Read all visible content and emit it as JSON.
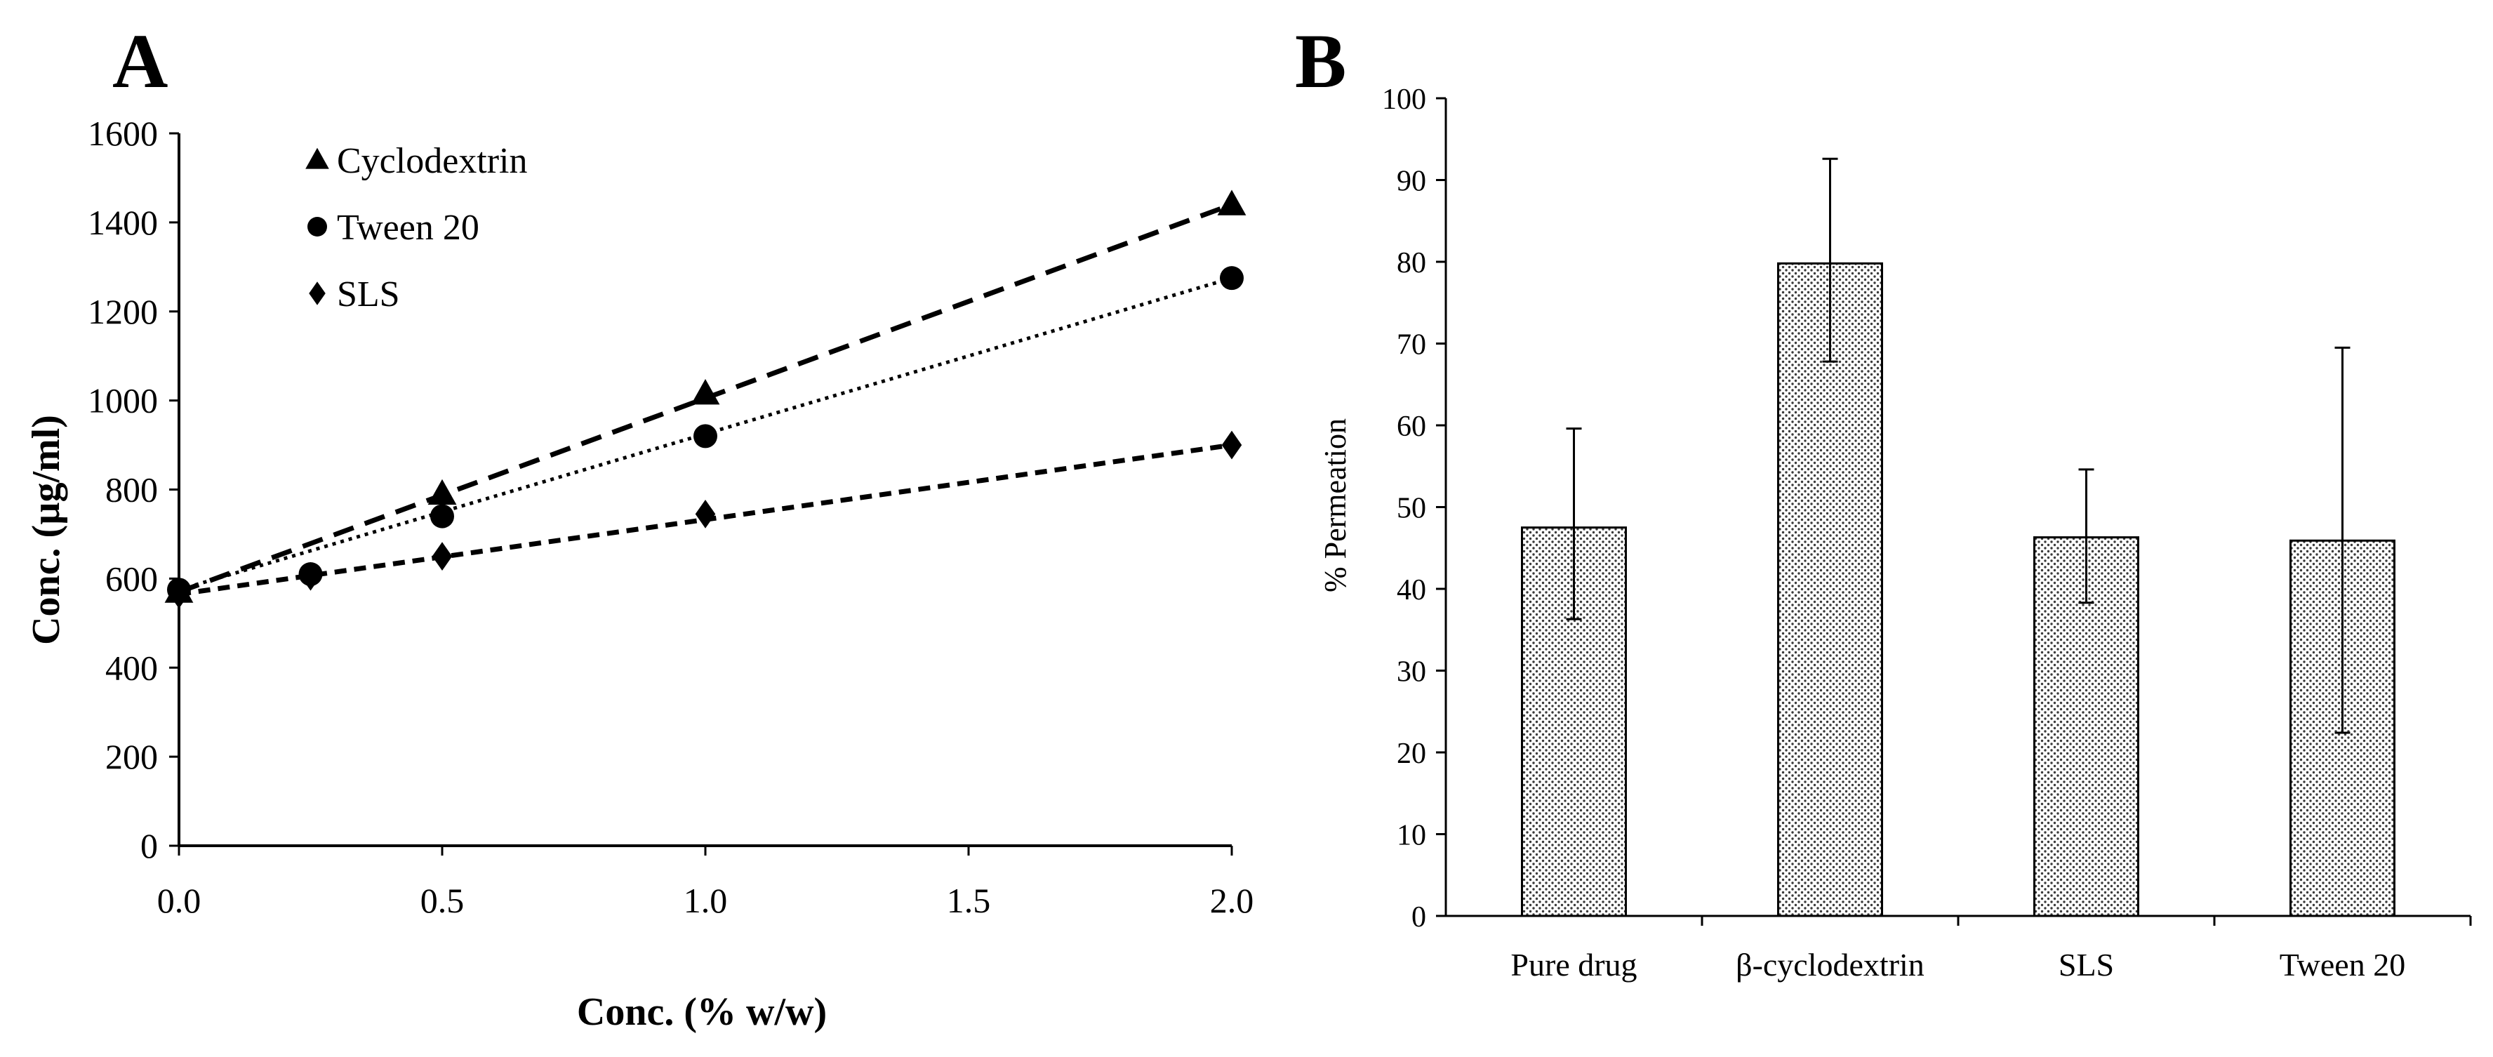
{
  "chart_data": [
    {
      "panel_label": "A",
      "type": "line",
      "xlabel": "Conc. (% w/w)",
      "ylabel": "Conc.  (µg/ml)",
      "xlim": [
        0,
        2
      ],
      "ylim": [
        0,
        1600
      ],
      "x_ticks": [
        "0.0",
        "0.5",
        "1.0",
        "1.5",
        "2.0"
      ],
      "y_ticks": [
        "0",
        "200",
        "400",
        "600",
        "800",
        "1000",
        "1200",
        "1400",
        "1600"
      ],
      "legend_position": "top-left",
      "grid": false,
      "series": [
        {
          "name": "Cyclodextrin",
          "marker": "triangle",
          "line_style": "long-dash",
          "points": [
            [
              0,
              570
            ],
            [
              0.5,
              790
            ],
            [
              1.0,
              1015
            ],
            [
              2.0,
              1440
            ]
          ]
        },
        {
          "name": "Tween 20",
          "marker": "circle",
          "line_style": "dotted",
          "points": [
            [
              0,
              575
            ],
            [
              0.25,
              610
            ],
            [
              0.5,
              740
            ],
            [
              1.0,
              920
            ],
            [
              2.0,
              1275
            ]
          ]
        },
        {
          "name": "SLS",
          "marker": "diamond",
          "line_style": "short-dash",
          "points": [
            [
              0,
              565
            ],
            [
              0.25,
              605
            ],
            [
              0.5,
              650
            ],
            [
              1.0,
              745
            ],
            [
              2.0,
              900
            ]
          ]
        }
      ]
    },
    {
      "panel_label": "B",
      "type": "bar",
      "xlabel": "",
      "ylabel": "% Permeation",
      "ylim": [
        0,
        100
      ],
      "y_ticks": [
        "0",
        "10",
        "20",
        "30",
        "40",
        "50",
        "60",
        "70",
        "80",
        "90",
        "100"
      ],
      "categories": [
        "Pure drug",
        "β-cyclodextrin",
        "SLS",
        "Tween 20"
      ],
      "values": [
        47.5,
        79.8,
        46.3,
        45.9
      ],
      "error_low": [
        36.3,
        67.8,
        38.3,
        22.4
      ],
      "error_high": [
        59.6,
        92.6,
        54.6,
        69.5
      ],
      "grid": false
    }
  ]
}
